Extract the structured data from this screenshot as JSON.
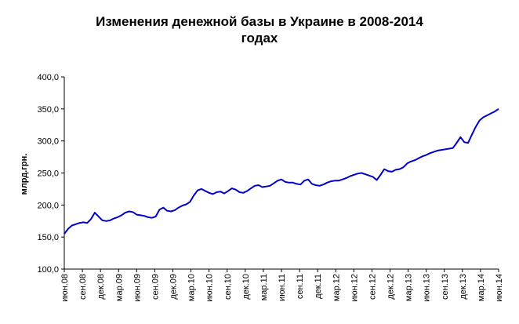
{
  "chart_data": {
    "type": "line",
    "title_line1": "Изменения денежной базы в Украине в 2008-2014",
    "title_line2": "годах",
    "ylabel": "млрд.грн.",
    "xlabel": "",
    "ylim": [
      100,
      400
    ],
    "yticks": [
      "400,0",
      "350,0",
      "300,0",
      "250,0",
      "200,0",
      "150,0",
      "100,0"
    ],
    "ytick_values": [
      400,
      350,
      300,
      250,
      200,
      150,
      100
    ],
    "xtick_labels": [
      "июн.08",
      "сен.08",
      "дек.08",
      "мар.09",
      "июн.09",
      "сен.09",
      "дек.09",
      "мар.10",
      "июн.10",
      "сен.10",
      "дек.10",
      "мар.11",
      "июн.11",
      "сен.11",
      "дек.11",
      "мар.12",
      "июн.12",
      "сен.12",
      "дек.12",
      "мар.13",
      "июн.13",
      "сен.13",
      "дек.13",
      "мар.14",
      "июн.14"
    ],
    "grid": false,
    "line_color": "#0000CC",
    "series": [
      {
        "values": [
          155,
          163,
          168,
          170,
          172,
          173,
          172,
          178,
          188,
          182,
          176,
          175,
          176,
          179,
          181,
          184,
          188,
          190,
          189,
          185,
          184,
          183,
          181,
          180,
          182,
          193,
          196,
          191,
          190,
          192,
          196,
          199,
          201,
          205,
          215,
          223,
          225,
          222,
          219,
          217,
          220,
          221,
          218,
          222,
          226,
          224,
          220,
          219,
          222,
          226,
          230,
          231,
          228,
          229,
          230,
          234,
          238,
          240,
          236,
          235,
          235,
          233,
          232,
          238,
          240,
          233,
          231,
          230,
          232,
          235,
          237,
          238,
          238,
          240,
          242,
          245,
          247,
          249,
          250,
          248,
          246,
          244,
          239,
          247,
          256,
          253,
          252,
          255,
          256,
          259,
          265,
          268,
          270,
          273,
          276,
          278,
          281,
          283,
          285,
          286,
          287,
          288,
          289,
          297,
          306,
          298,
          297,
          310,
          322,
          332,
          337,
          340,
          343,
          346,
          350
        ]
      }
    ]
  }
}
